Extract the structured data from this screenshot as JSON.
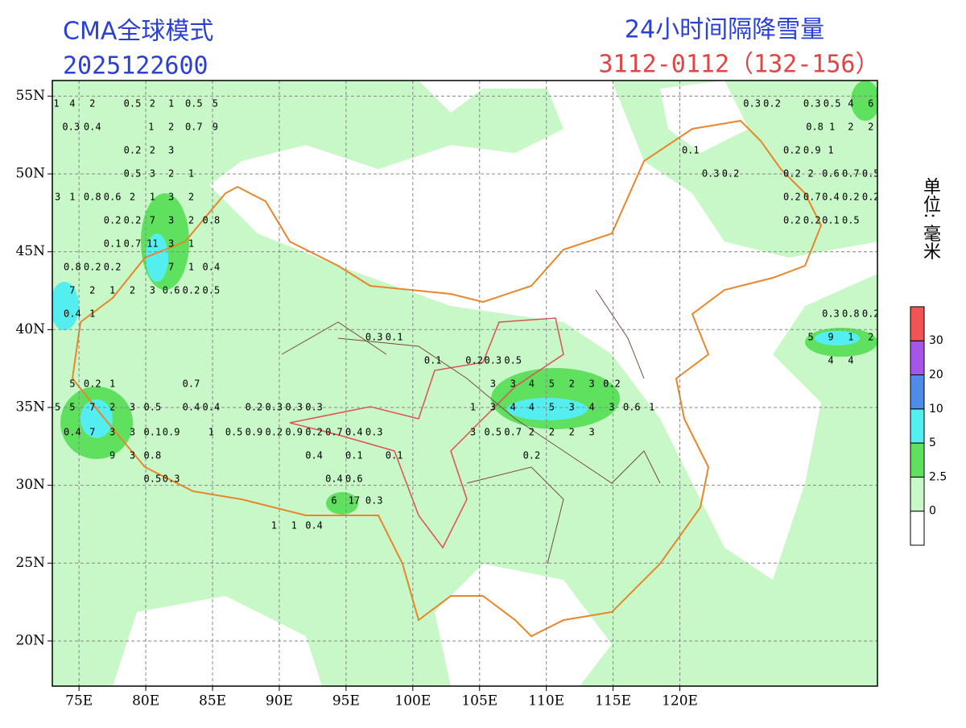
{
  "header": {
    "model": "CMA全球模式",
    "init_time": "2025122600",
    "product": "24小时间隔降雪量",
    "period": "3112-0112（132-156）"
  },
  "map": {
    "xlim": [
      73,
      134.8
    ],
    "ylim": [
      17.1,
      56.0
    ],
    "xticks": [
      {
        "value": 75,
        "label": "75E"
      },
      {
        "value": 80,
        "label": "80E"
      },
      {
        "value": 85,
        "label": "85E"
      },
      {
        "value": 90,
        "label": "90E"
      },
      {
        "value": 95,
        "label": "95E"
      },
      {
        "value": 100,
        "label": "100E"
      },
      {
        "value": 105,
        "label": "105E"
      },
      {
        "value": 110,
        "label": "110E"
      },
      {
        "value": 115,
        "label": "115E"
      },
      {
        "value": 120,
        "label": "120E"
      }
    ],
    "yticks": [
      {
        "value": 55,
        "label": "55N"
      },
      {
        "value": 50,
        "label": "50N"
      },
      {
        "value": 45,
        "label": "45N"
      },
      {
        "value": 40,
        "label": "40N"
      },
      {
        "value": 35,
        "label": "35N"
      },
      {
        "value": 30,
        "label": "30N"
      },
      {
        "value": 25,
        "label": "25N"
      },
      {
        "value": 20,
        "label": "20N"
      }
    ],
    "grid": true,
    "rows": [
      {
        "lat": 54.5,
        "points": [
          {
            "lon": 73.3,
            "v": 1
          },
          {
            "lon": 74.5,
            "v": 4
          },
          {
            "lon": 76.0,
            "v": 2
          },
          {
            "lon": 79.0,
            "v": 0.5
          },
          {
            "lon": 80.5,
            "v": 2
          },
          {
            "lon": 81.9,
            "v": 1
          },
          {
            "lon": 83.6,
            "v": 0.5
          },
          {
            "lon": 85.2,
            "v": 5
          },
          {
            "lon": 125.4,
            "v": 0.3
          },
          {
            "lon": 126.9,
            "v": 0.2
          },
          {
            "lon": 129.9,
            "v": 0.3
          },
          {
            "lon": 131.4,
            "v": 0.5
          },
          {
            "lon": 132.8,
            "v": 4
          },
          {
            "lon": 134.3,
            "v": 6
          }
        ]
      },
      {
        "lat": 53.0,
        "points": [
          {
            "lon": 74.4,
            "v": 0.3
          },
          {
            "lon": 76.0,
            "v": 0.4
          },
          {
            "lon": 80.4,
            "v": 1
          },
          {
            "lon": 81.9,
            "v": 2
          },
          {
            "lon": 83.6,
            "v": 0.7
          },
          {
            "lon": 85.2,
            "v": 9
          },
          {
            "lon": 130.1,
            "v": 0.8
          },
          {
            "lon": 131.4,
            "v": 1
          },
          {
            "lon": 132.8,
            "v": 2
          },
          {
            "lon": 134.3,
            "v": 2
          }
        ]
      },
      {
        "lat": 51.5,
        "points": [
          {
            "lon": 79.0,
            "v": 0.2
          },
          {
            "lon": 80.5,
            "v": 2
          },
          {
            "lon": 81.9,
            "v": 3
          },
          {
            "lon": 120.8,
            "v": 0.1
          },
          {
            "lon": 128.4,
            "v": 0.2
          },
          {
            "lon": 129.9,
            "v": 0.9
          },
          {
            "lon": 131.3,
            "v": 1
          }
        ]
      },
      {
        "lat": 50.0,
        "points": [
          {
            "lon": 79.0,
            "v": 0.5
          },
          {
            "lon": 80.5,
            "v": 3
          },
          {
            "lon": 81.9,
            "v": 2
          },
          {
            "lon": 83.4,
            "v": 1
          },
          {
            "lon": 122.3,
            "v": 0.3
          },
          {
            "lon": 123.8,
            "v": 0.2
          },
          {
            "lon": 128.4,
            "v": 0.2
          },
          {
            "lon": 129.8,
            "v": 2
          },
          {
            "lon": 131.3,
            "v": 0.6
          },
          {
            "lon": 132.8,
            "v": 0.7
          },
          {
            "lon": 134.3,
            "v": 0.5
          }
        ]
      },
      {
        "lat": 48.5,
        "points": [
          {
            "lon": 73.4,
            "v": 3
          },
          {
            "lon": 74.5,
            "v": 1
          },
          {
            "lon": 76.0,
            "v": 0.8
          },
          {
            "lon": 77.5,
            "v": 0.6
          },
          {
            "lon": 79.0,
            "v": 2
          },
          {
            "lon": 80.5,
            "v": 1
          },
          {
            "lon": 81.9,
            "v": 3
          },
          {
            "lon": 83.4,
            "v": 2
          },
          {
            "lon": 128.4,
            "v": 0.2
          },
          {
            "lon": 129.9,
            "v": 0.7
          },
          {
            "lon": 131.3,
            "v": 0.4
          },
          {
            "lon": 132.8,
            "v": 0.2
          },
          {
            "lon": 134.3,
            "v": 0.2
          }
        ]
      },
      {
        "lat": 47.0,
        "points": [
          {
            "lon": 77.5,
            "v": 0.2
          },
          {
            "lon": 79.0,
            "v": 0.2
          },
          {
            "lon": 80.5,
            "v": 7
          },
          {
            "lon": 81.9,
            "v": 3
          },
          {
            "lon": 83.4,
            "v": 2
          },
          {
            "lon": 84.9,
            "v": 0.8
          },
          {
            "lon": 128.4,
            "v": 0.2
          },
          {
            "lon": 129.9,
            "v": 0.2
          },
          {
            "lon": 131.3,
            "v": 0.1
          },
          {
            "lon": 132.8,
            "v": 0.5
          }
        ]
      },
      {
        "lat": 45.5,
        "points": [
          {
            "lon": 77.5,
            "v": 0.1
          },
          {
            "lon": 79.0,
            "v": 0.7
          },
          {
            "lon": 80.5,
            "v": 11
          },
          {
            "lon": 81.9,
            "v": 3
          },
          {
            "lon": 83.4,
            "v": 1
          }
        ]
      },
      {
        "lat": 44.0,
        "points": [
          {
            "lon": 74.5,
            "v": 0.8
          },
          {
            "lon": 76.0,
            "v": 0.2
          },
          {
            "lon": 77.5,
            "v": 0.2
          },
          {
            "lon": 81.9,
            "v": 7
          },
          {
            "lon": 83.4,
            "v": 1
          },
          {
            "lon": 84.9,
            "v": 0.4
          }
        ]
      },
      {
        "lat": 42.5,
        "points": [
          {
            "lon": 74.5,
            "v": 7
          },
          {
            "lon": 76.0,
            "v": 2
          },
          {
            "lon": 77.5,
            "v": 1
          },
          {
            "lon": 79.0,
            "v": 2
          },
          {
            "lon": 80.5,
            "v": 3
          },
          {
            "lon": 81.9,
            "v": 0.6
          },
          {
            "lon": 83.4,
            "v": 0.2
          },
          {
            "lon": 84.9,
            "v": 0.5
          }
        ]
      },
      {
        "lat": 41.0,
        "points": [
          {
            "lon": 74.5,
            "v": 0.4
          },
          {
            "lon": 76.0,
            "v": 1
          },
          {
            "lon": 131.3,
            "v": 0.3
          },
          {
            "lon": 132.8,
            "v": 0.8
          },
          {
            "lon": 134.3,
            "v": 0.2
          }
        ]
      },
      {
        "lat": 39.5,
        "points": [
          {
            "lon": 97.1,
            "v": 0.3
          },
          {
            "lon": 98.6,
            "v": 0.1
          },
          {
            "lon": 129.8,
            "v": 5
          },
          {
            "lon": 131.3,
            "v": 9
          },
          {
            "lon": 132.8,
            "v": 1
          },
          {
            "lon": 134.3,
            "v": 2
          }
        ]
      },
      {
        "lat": 38.0,
        "points": [
          {
            "lon": 101.5,
            "v": 0.1
          },
          {
            "lon": 104.6,
            "v": 0.2
          },
          {
            "lon": 106.0,
            "v": 0.3
          },
          {
            "lon": 107.5,
            "v": 0.5
          },
          {
            "lon": 131.3,
            "v": 4
          },
          {
            "lon": 132.8,
            "v": 4
          }
        ]
      },
      {
        "lat": 36.5,
        "points": [
          {
            "lon": 74.5,
            "v": 5
          },
          {
            "lon": 76.0,
            "v": 0.2
          },
          {
            "lon": 77.5,
            "v": 1
          },
          {
            "lon": 83.4,
            "v": 0.7
          },
          {
            "lon": 106.0,
            "v": 3
          },
          {
            "lon": 107.5,
            "v": 3
          },
          {
            "lon": 108.9,
            "v": 4
          },
          {
            "lon": 110.4,
            "v": 5
          },
          {
            "lon": 111.9,
            "v": 2
          },
          {
            "lon": 113.4,
            "v": 3
          },
          {
            "lon": 114.9,
            "v": 0.2
          }
        ]
      },
      {
        "lat": 35.0,
        "points": [
          {
            "lon": 73.4,
            "v": 5
          },
          {
            "lon": 74.5,
            "v": 5
          },
          {
            "lon": 76.0,
            "v": 7
          },
          {
            "lon": 77.5,
            "v": 2
          },
          {
            "lon": 79.0,
            "v": 3
          },
          {
            "lon": 80.5,
            "v": 0.5
          },
          {
            "lon": 83.4,
            "v": 0.4
          },
          {
            "lon": 84.9,
            "v": 0.4
          },
          {
            "lon": 88.1,
            "v": 0.2
          },
          {
            "lon": 89.6,
            "v": 0.3
          },
          {
            "lon": 91.1,
            "v": 0.3
          },
          {
            "lon": 92.6,
            "v": 0.3
          },
          {
            "lon": 104.5,
            "v": 1
          },
          {
            "lon": 106.0,
            "v": 3
          },
          {
            "lon": 107.5,
            "v": 4
          },
          {
            "lon": 108.9,
            "v": 4
          },
          {
            "lon": 110.4,
            "v": 5
          },
          {
            "lon": 111.9,
            "v": 3
          },
          {
            "lon": 113.4,
            "v": 4
          },
          {
            "lon": 114.9,
            "v": 3
          },
          {
            "lon": 116.4,
            "v": 0.6
          },
          {
            "lon": 117.9,
            "v": 1
          }
        ]
      },
      {
        "lat": 33.4,
        "points": [
          {
            "lon": 74.5,
            "v": 0.4
          },
          {
            "lon": 76.0,
            "v": 7
          },
          {
            "lon": 77.5,
            "v": 3
          },
          {
            "lon": 79.0,
            "v": 3
          },
          {
            "lon": 80.5,
            "v": 0.1
          },
          {
            "lon": 81.9,
            "v": 0.9
          },
          {
            "lon": 84.9,
            "v": 1
          },
          {
            "lon": 86.6,
            "v": 0.5
          },
          {
            "lon": 88.1,
            "v": 0.9
          },
          {
            "lon": 89.6,
            "v": 0.2
          },
          {
            "lon": 91.1,
            "v": 0.9
          },
          {
            "lon": 92.6,
            "v": 0.2
          },
          {
            "lon": 94.1,
            "v": 0.7
          },
          {
            "lon": 95.6,
            "v": 0.4
          },
          {
            "lon": 97.1,
            "v": 0.3
          },
          {
            "lon": 104.5,
            "v": 3
          },
          {
            "lon": 106.0,
            "v": 0.5
          },
          {
            "lon": 107.5,
            "v": 0.7
          },
          {
            "lon": 108.9,
            "v": 2
          },
          {
            "lon": 110.4,
            "v": 2
          },
          {
            "lon": 111.9,
            "v": 2
          },
          {
            "lon": 113.4,
            "v": 3
          }
        ]
      },
      {
        "lat": 31.9,
        "points": [
          {
            "lon": 77.5,
            "v": 9
          },
          {
            "lon": 79.0,
            "v": 3
          },
          {
            "lon": 80.5,
            "v": 0.8
          },
          {
            "lon": 92.6,
            "v": 0.4
          },
          {
            "lon": 95.6,
            "v": 0.1
          },
          {
            "lon": 98.6,
            "v": 0.1
          },
          {
            "lon": 108.9,
            "v": 0.2
          }
        ]
      },
      {
        "lat": 30.4,
        "points": [
          {
            "lon": 80.5,
            "v": 0.5
          },
          {
            "lon": 81.9,
            "v": 0.3
          },
          {
            "lon": 94.1,
            "v": 0.4
          },
          {
            "lon": 95.6,
            "v": 0.6
          }
        ]
      },
      {
        "lat": 29.0,
        "points": [
          {
            "lon": 94.1,
            "v": 6
          },
          {
            "lon": 95.6,
            "v": 17
          },
          {
            "lon": 97.1,
            "v": 0.3
          }
        ]
      },
      {
        "lat": 27.4,
        "points": [
          {
            "lon": 89.6,
            "v": 1
          },
          {
            "lon": 91.1,
            "v": 1
          },
          {
            "lon": 92.6,
            "v": 0.4
          }
        ]
      }
    ]
  },
  "legend": {
    "levels": [
      0,
      2.5,
      5,
      10,
      20,
      30
    ],
    "colors": [
      "#ffffff",
      "#c8f7c8",
      "#5fe05f",
      "#55eef0",
      "#4f8ce8",
      "#a656e6",
      "#f05555"
    ],
    "unit": "单位: 毫米"
  }
}
